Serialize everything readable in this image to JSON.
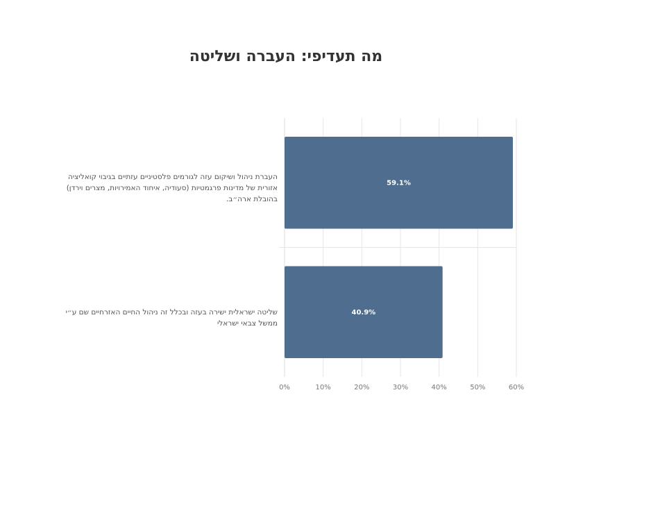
{
  "chart_data": {
    "type": "barh",
    "title": "מה תעדיפי: העברה ושליטה",
    "categories": [
      "העברת ניהול ושיקום עזה לגורמים פלסטיניים עזתיים בגיבוי קואליציה אזורית של מדינות פרגמטיות (סעודיה, איחוד האמירויות, מצרים וירדן) בהובלת ארה״ב.",
      "שליטה ישראלית ישירה בעזה ובכלל זה ניהול החיים האזרחיים שם ע״י ממשל צבאי ישראלי"
    ],
    "values": [
      59.1,
      40.9
    ],
    "value_labels": [
      "59.1%",
      "40.9%"
    ],
    "color": "#4f6d8f",
    "xlim": [
      0,
      60
    ],
    "xticks": [
      {
        "value": 0,
        "label": "0%"
      },
      {
        "value": 10,
        "label": "10%"
      },
      {
        "value": 20,
        "label": "20%"
      },
      {
        "value": 30,
        "label": "30%"
      },
      {
        "value": 40,
        "label": "40%"
      },
      {
        "value": 50,
        "label": "50%"
      },
      {
        "value": 60,
        "label": "60%"
      }
    ],
    "grid": true
  }
}
